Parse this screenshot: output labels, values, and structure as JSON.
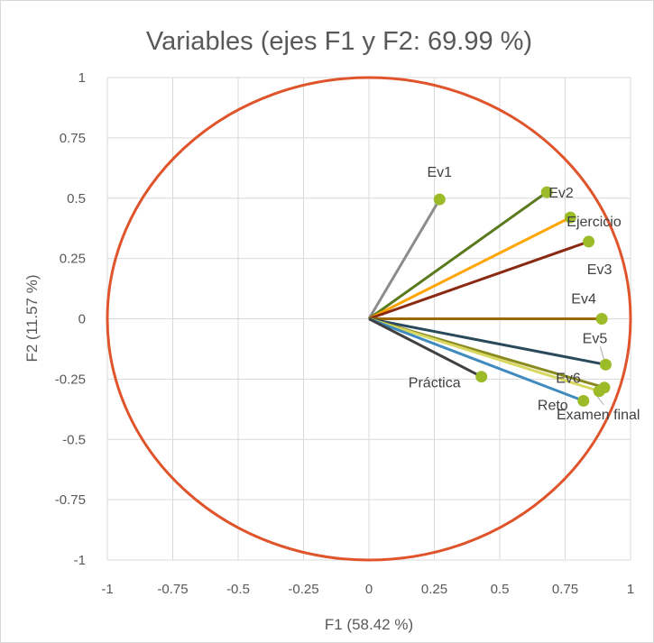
{
  "chart_data": {
    "type": "scatter",
    "title": "Variables (ejes F1 y F2: 69.99 %)",
    "xlabel": "F1 (58.42 %)",
    "ylabel": "F2 (11.57 %)",
    "xlim": [
      -1,
      1
    ],
    "ylim": [
      -1,
      1
    ],
    "xticks": [
      "-1",
      "-0.75",
      "-0.5",
      "-0.25",
      "0",
      "0.25",
      "0.5",
      "0.75",
      "1"
    ],
    "yticks": [
      "1",
      "0.75",
      "0.5",
      "0.25",
      "0",
      "-0.25",
      "-0.5",
      "-0.75",
      "-1"
    ],
    "grid": true,
    "unit_circle": true,
    "circle_color": "#e0542b",
    "marker_color": "#9bbb29",
    "points": [
      {
        "label": "Ev1",
        "x": 0.27,
        "y": 0.495,
        "color": "#8c8c8c"
      },
      {
        "label": "Ev2",
        "x": 0.68,
        "y": 0.525,
        "color": "#5a7a1e"
      },
      {
        "label": "Ejercicio",
        "x": 0.77,
        "y": 0.42,
        "color": "#ffa500"
      },
      {
        "label": "Ev3",
        "x": 0.84,
        "y": 0.32,
        "color": "#8b2a12"
      },
      {
        "label": "Ev4",
        "x": 0.89,
        "y": 0.0,
        "color": "#9a6a00"
      },
      {
        "label": "Ev5",
        "x": 0.905,
        "y": -0.19,
        "color": "#2a4a5c"
      },
      {
        "label": "Ev6",
        "x": 0.9,
        "y": -0.285,
        "color": "#8a8a20"
      },
      {
        "label": "Examen final",
        "x": 0.88,
        "y": -0.3,
        "color": "#d8d860"
      },
      {
        "label": "Reto",
        "x": 0.82,
        "y": -0.34,
        "color": "#3f8bbf"
      },
      {
        "label": "Práctica",
        "x": 0.43,
        "y": -0.24,
        "color": "#404040"
      }
    ]
  }
}
